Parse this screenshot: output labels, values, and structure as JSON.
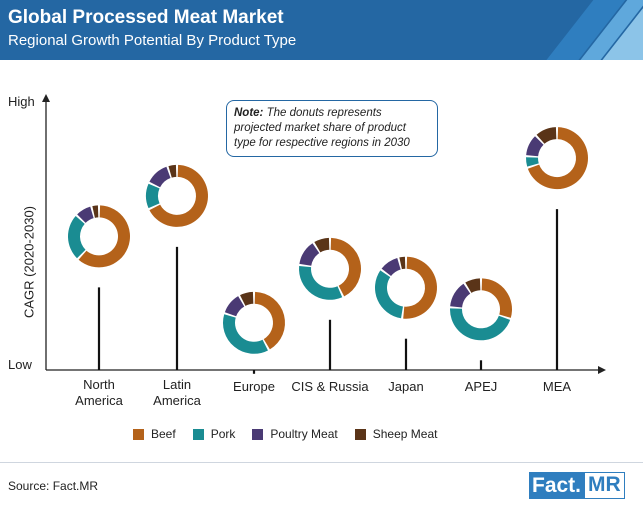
{
  "header": {
    "title": "Global Processed Meat Market",
    "subtitle": "Regional Growth Potential By Product Type"
  },
  "note": {
    "label": "Note:",
    "text": "The donuts represents projected market share of product type for respective regions in 2030"
  },
  "source": "Source: Fact.MR",
  "logo": {
    "part1": "Fact.",
    "part2": "MR"
  },
  "colors": {
    "header_bg": "#2467a3",
    "beef": "#b4621a",
    "pork": "#1a8c92",
    "poultry": "#4a3a74",
    "sheep": "#5a3418"
  },
  "chart_data": {
    "type": "donut-lollipop",
    "ylabel": "CAGR (2020-2030)",
    "y_tick_labels": [
      "High",
      "Low"
    ],
    "legend": [
      "Beef",
      "Pork",
      "Poultry Meat",
      "Sheep Meat"
    ],
    "categories": [
      {
        "label_lines": [
          "North",
          "America"
        ],
        "cagr_relative": 0.38,
        "shares": [
          0.62,
          0.25,
          0.09,
          0.04
        ]
      },
      {
        "label_lines": [
          "Latin",
          "America"
        ],
        "cagr_relative": 0.53,
        "shares": [
          0.68,
          0.14,
          0.13,
          0.05
        ]
      },
      {
        "label_lines": [
          "Europe"
        ],
        "cagr_relative": 0.06,
        "shares": [
          0.42,
          0.38,
          0.12,
          0.08
        ]
      },
      {
        "label_lines": [
          "CIS & Russia"
        ],
        "cagr_relative": 0.26,
        "shares": [
          0.43,
          0.34,
          0.14,
          0.09
        ]
      },
      {
        "label_lines": [
          "Japan"
        ],
        "cagr_relative": 0.19,
        "shares": [
          0.52,
          0.33,
          0.11,
          0.04
        ]
      },
      {
        "label_lines": [
          "APEJ"
        ],
        "cagr_relative": 0.11,
        "shares": [
          0.3,
          0.46,
          0.15,
          0.09
        ]
      },
      {
        "label_lines": [
          "MEA"
        ],
        "cagr_relative": 0.67,
        "shares": [
          0.7,
          0.06,
          0.12,
          0.12
        ]
      }
    ]
  }
}
